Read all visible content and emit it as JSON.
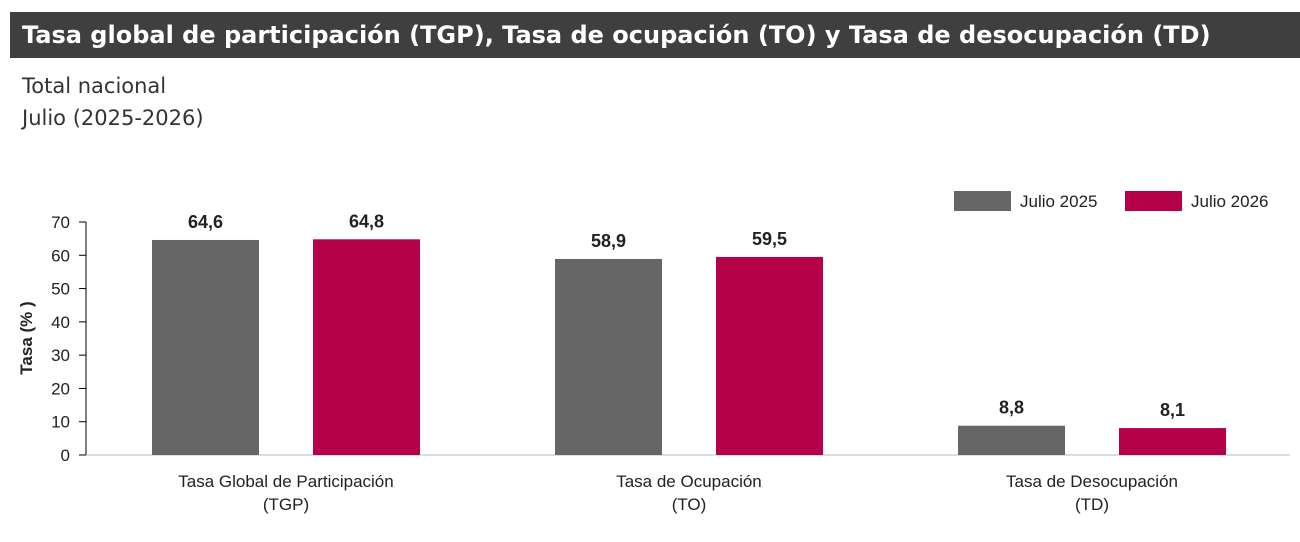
{
  "header": {
    "title": "Tasa global de participación (TGP), Tasa de ocupación (TO) y Tasa de desocupación (TD)",
    "subtitle_line1": "Total nacional",
    "subtitle_line2": "Julio (2025-2026)"
  },
  "chart_data": {
    "type": "bar",
    "categories": [
      [
        "Tasa Global de Participación",
        "(TGP)"
      ],
      [
        "Tasa de Ocupación",
        "(TO)"
      ],
      [
        "Tasa de Desocupación",
        "(TD)"
      ]
    ],
    "series": [
      {
        "name": "Julio  2025",
        "values": [
          64.6,
          58.9,
          8.8
        ],
        "labels": [
          "64,6",
          "58,9",
          "8,8"
        ],
        "color": "#666666"
      },
      {
        "name": "Julio  2026",
        "values": [
          64.8,
          59.5,
          8.1
        ],
        "labels": [
          "64,8",
          "59,5",
          "8,1"
        ],
        "color": "#b5004a"
      }
    ],
    "ylabel": "Tasa (% )",
    "xlabel": "",
    "ylim": [
      0,
      70
    ],
    "yticks": [
      0,
      10,
      20,
      30,
      40,
      50,
      60,
      70
    ],
    "grid": false,
    "legend_position": "top-right"
  }
}
